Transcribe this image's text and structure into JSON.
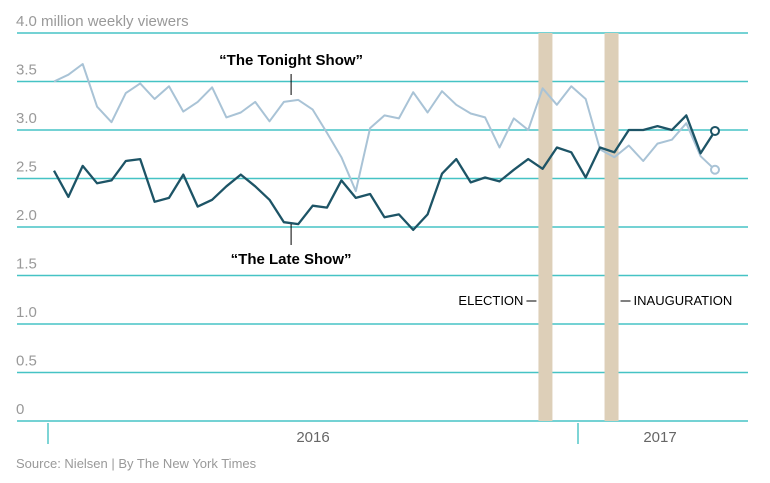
{
  "chart_data": {
    "type": "line",
    "ylabel": "million weekly viewers",
    "ylim": [
      0,
      4.0
    ],
    "yticks": [
      "0",
      "0.5",
      "1.0",
      "1.5",
      "2.0",
      "2.5",
      "3.0",
      "3.5",
      "4.0"
    ],
    "xticks": [
      "2016",
      "2017"
    ],
    "grid": true,
    "series": [
      {
        "name": "“The Tonight Show”",
        "color": "#a9c3d6",
        "values": [
          3.5,
          3.57,
          3.68,
          3.24,
          3.08,
          3.38,
          3.48,
          3.32,
          3.45,
          3.19,
          3.29,
          3.44,
          3.13,
          3.18,
          3.29,
          3.09,
          3.29,
          3.31,
          3.21,
          2.97,
          2.72,
          2.37,
          3.02,
          3.15,
          3.12,
          3.39,
          3.18,
          3.4,
          3.26,
          3.17,
          3.13,
          2.82,
          3.12,
          3.0,
          3.43,
          3.26,
          3.45,
          3.32,
          2.8,
          2.72,
          2.84,
          2.68,
          2.86,
          2.9,
          3.07,
          2.73,
          2.59
        ]
      },
      {
        "name": "“The Late Show”",
        "color": "#1d5466",
        "values": [
          2.58,
          2.31,
          2.63,
          2.45,
          2.48,
          2.68,
          2.7,
          2.26,
          2.3,
          2.54,
          2.21,
          2.28,
          2.42,
          2.54,
          2.42,
          2.28,
          2.05,
          2.03,
          2.22,
          2.2,
          2.48,
          2.3,
          2.34,
          2.1,
          2.13,
          1.97,
          2.13,
          2.55,
          2.7,
          2.46,
          2.51,
          2.47,
          2.59,
          2.7,
          2.6,
          2.82,
          2.77,
          2.51,
          2.82,
          2.77,
          3.0,
          3.0,
          3.04,
          3.0,
          3.15,
          2.76,
          2.99
        ]
      }
    ],
    "events": [
      {
        "label": "ELECTION",
        "week": 34.2,
        "side": "left"
      },
      {
        "label": "INAUGURATION",
        "week": 38.8,
        "side": "right"
      }
    ]
  },
  "source": "Source: Nielsen | By The New York Times"
}
